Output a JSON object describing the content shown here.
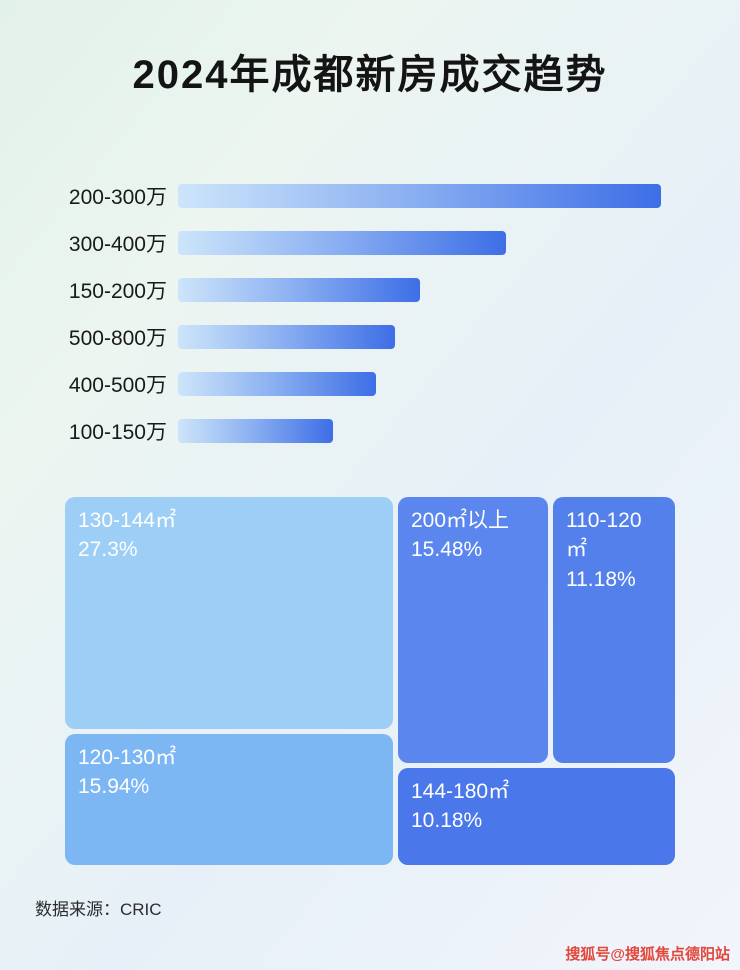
{
  "page": {
    "title": "2024年成都新房成交趋势",
    "source": "数据来源：CRIC",
    "watermark": "搜狐号@搜狐焦点德阳站"
  },
  "colors": {
    "bar_gradient_start": "#cde5fa",
    "bar_gradient_end": "#3d6ee6",
    "treemap_130_144": "#9dcef6",
    "treemap_200_plus": "#5b86ee",
    "treemap_110_120": "#5480ec",
    "treemap_120_130": "#7db7f3",
    "treemap_144_180": "#4a77e9",
    "watermark_red": "#e2483c"
  },
  "chart_data": [
    {
      "type": "bar",
      "orientation": "horizontal",
      "title": "2024年成都新房成交趋势",
      "categories": [
        "200-300万",
        "300-400万",
        "150-200万",
        "500-800万",
        "400-500万",
        "100-150万"
      ],
      "values": [
        100,
        68,
        50,
        45,
        41,
        32
      ],
      "value_note": "no numeric axis shown; values are bar lengths as % of longest bar",
      "xlabel": "",
      "ylabel": "",
      "grid": false,
      "legend": false
    },
    {
      "type": "treemap",
      "title": "",
      "items": [
        {
          "label": "130-144㎡",
          "value": 27.3,
          "display": "27.3%"
        },
        {
          "label": "200㎡以上",
          "value": 15.48,
          "display": "15.48%"
        },
        {
          "label": "110-120㎡",
          "value": 11.18,
          "display": "11.18%"
        },
        {
          "label": "120-130㎡",
          "value": 15.94,
          "display": "15.94%"
        },
        {
          "label": "144-180㎡",
          "value": 10.18,
          "display": "10.18%"
        }
      ],
      "legend": false
    }
  ]
}
